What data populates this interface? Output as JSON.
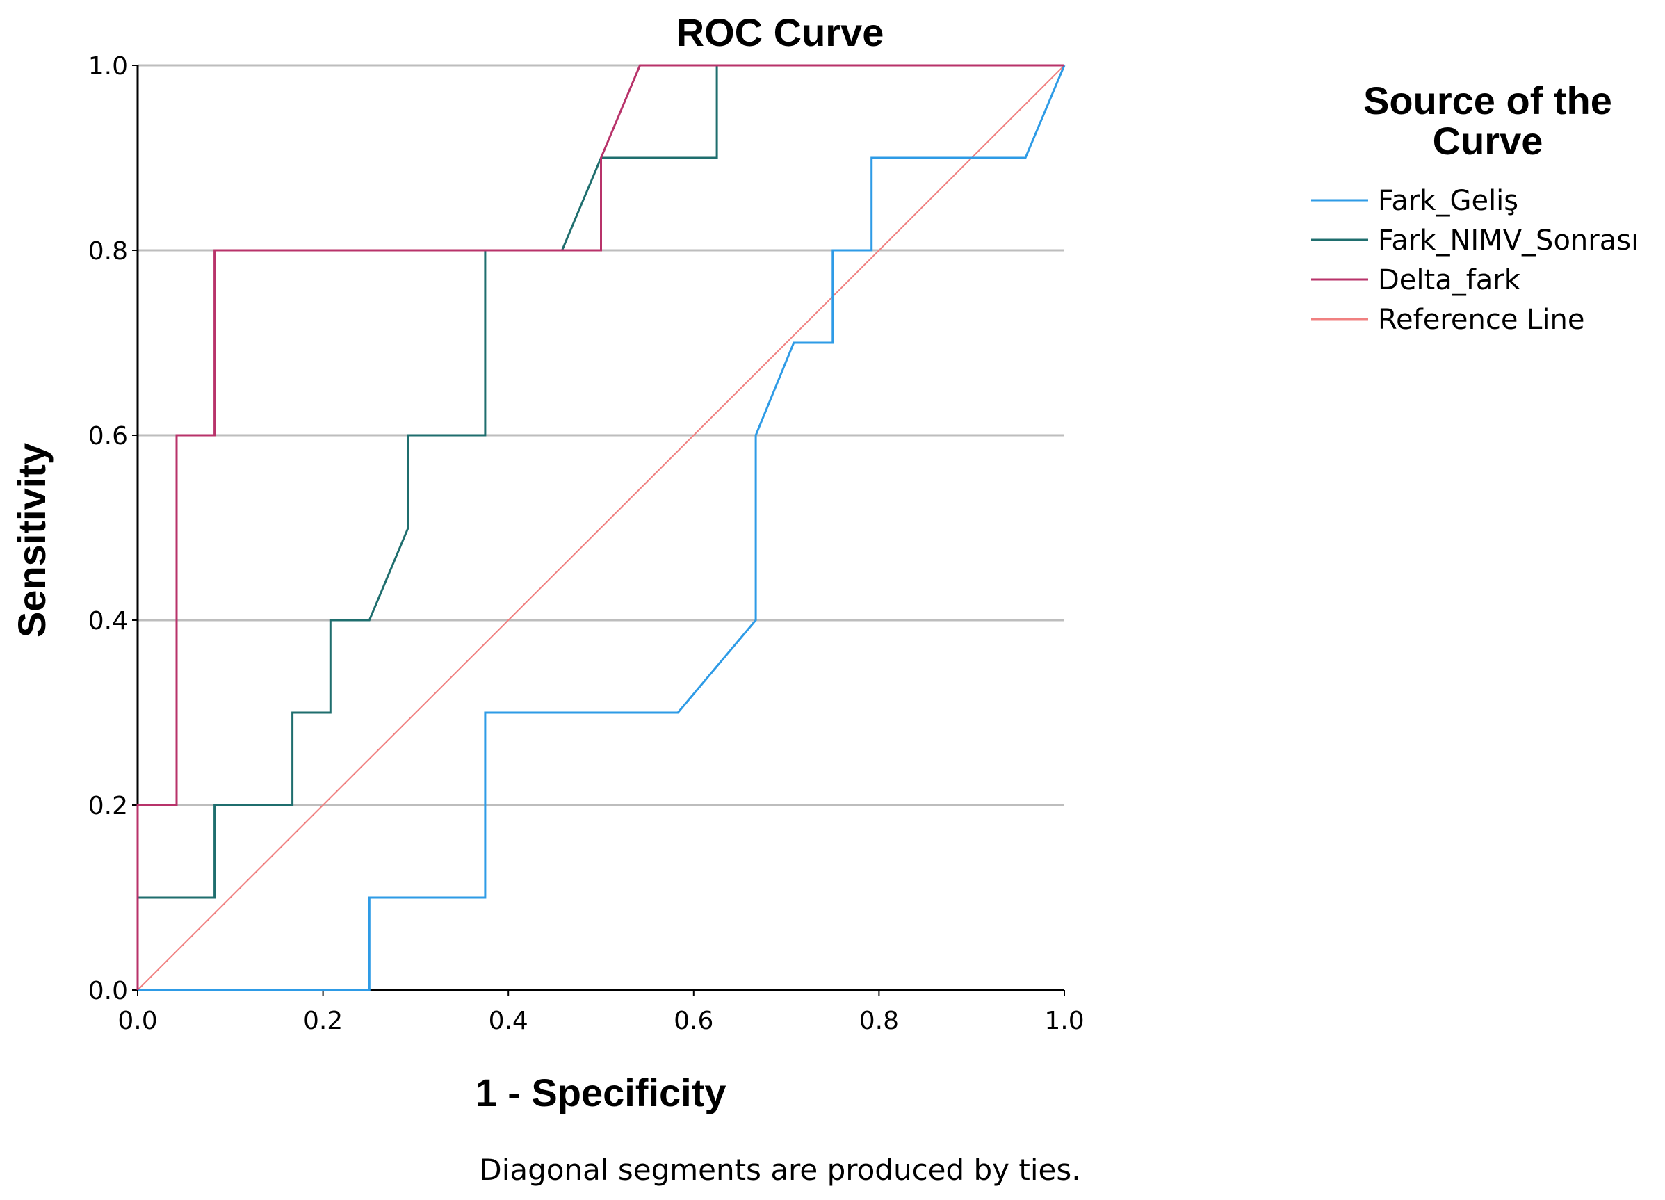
{
  "chart_data": {
    "type": "line",
    "title": "ROC Curve",
    "xlabel": "1 - Specificity",
    "ylabel": "Sensitivity",
    "xlim": [
      0,
      1
    ],
    "ylim": [
      0,
      1
    ],
    "xticks": [
      "0.0",
      "0.2",
      "0.4",
      "0.6",
      "0.8",
      "1.0"
    ],
    "yticks": [
      "0.0",
      "0.2",
      "0.4",
      "0.6",
      "0.8",
      "1.0"
    ],
    "grid": "horizontal",
    "legend_title_lines": [
      "Source of the",
      "Curve"
    ],
    "legend_position": "right",
    "footnote": "Diagonal segments are produced by ties.",
    "series": [
      {
        "name": "Fark_Geliş",
        "color": "#2E9BE6",
        "points": [
          [
            0,
            0
          ],
          [
            0.25,
            0
          ],
          [
            0.25,
            0.1
          ],
          [
            0.375,
            0.1
          ],
          [
            0.375,
            0.3
          ],
          [
            0.583,
            0.3
          ],
          [
            0.667,
            0.4
          ],
          [
            0.667,
            0.6
          ],
          [
            0.708,
            0.7
          ],
          [
            0.75,
            0.7
          ],
          [
            0.75,
            0.8
          ],
          [
            0.792,
            0.8
          ],
          [
            0.792,
            0.9
          ],
          [
            0.958,
            0.9
          ],
          [
            1,
            1
          ]
        ]
      },
      {
        "name": "Fark_NIMV_Sonrası",
        "color": "#1F6E6E",
        "points": [
          [
            0,
            0
          ],
          [
            0,
            0.1
          ],
          [
            0.083,
            0.1
          ],
          [
            0.083,
            0.2
          ],
          [
            0.167,
            0.2
          ],
          [
            0.167,
            0.3
          ],
          [
            0.208,
            0.3
          ],
          [
            0.208,
            0.4
          ],
          [
            0.25,
            0.4
          ],
          [
            0.292,
            0.5
          ],
          [
            0.292,
            0.6
          ],
          [
            0.375,
            0.6
          ],
          [
            0.375,
            0.8
          ],
          [
            0.458,
            0.8
          ],
          [
            0.5,
            0.9
          ],
          [
            0.625,
            0.9
          ],
          [
            0.625,
            1
          ],
          [
            1,
            1
          ]
        ]
      },
      {
        "name": "Delta_fark",
        "color": "#B8336A",
        "points": [
          [
            0,
            0
          ],
          [
            0,
            0.2
          ],
          [
            0.042,
            0.2
          ],
          [
            0.042,
            0.6
          ],
          [
            0.083,
            0.6
          ],
          [
            0.083,
            0.8
          ],
          [
            0.5,
            0.8
          ],
          [
            0.5,
            0.9
          ],
          [
            0.542,
            1
          ],
          [
            1,
            1
          ]
        ]
      },
      {
        "name": "Reference Line",
        "color": "#F08080",
        "points": [
          [
            0,
            0
          ],
          [
            1,
            1
          ]
        ]
      }
    ]
  }
}
